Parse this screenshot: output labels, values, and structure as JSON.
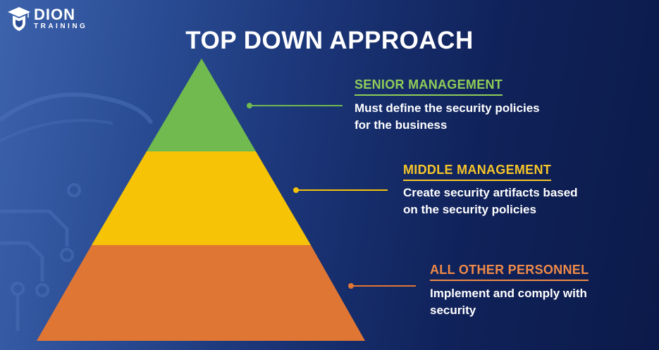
{
  "brand": {
    "name": "DION",
    "tagline": "TRAINING"
  },
  "title": "TOP DOWN APPROACH",
  "colors": {
    "senior": "#70ba4f",
    "middle": "#f7c307",
    "personnel": "#e07634",
    "heading_senior": "#8fcd58",
    "heading_middle": "#f7c62a",
    "heading_personnel": "#f08a48"
  },
  "tiers": [
    {
      "heading": "SENIOR MANAGEMENT",
      "description": [
        "Must define the security policies",
        "for the business"
      ]
    },
    {
      "heading": "MIDDLE MANAGEMENT",
      "description": [
        "Create security artifacts based",
        "on the security policies"
      ]
    },
    {
      "heading": "ALL OTHER PERSONNEL",
      "description": [
        "Implement and comply with",
        "security"
      ]
    }
  ]
}
